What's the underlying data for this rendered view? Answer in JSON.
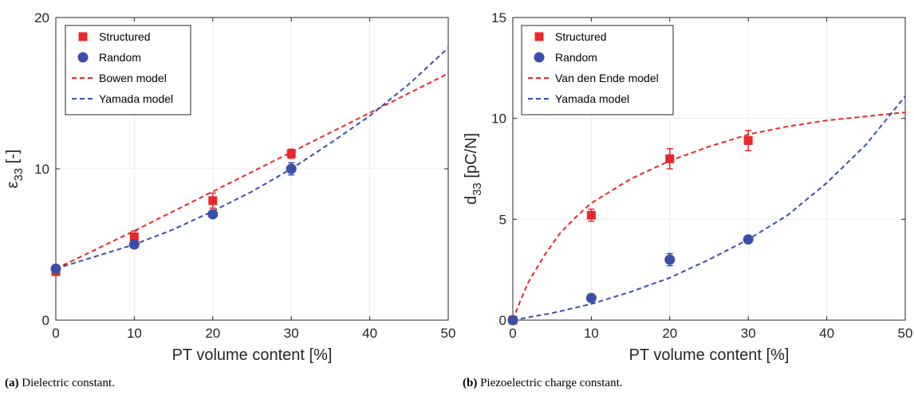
{
  "colors": {
    "structured": "#e8282a",
    "random": "#3a4fa8",
    "axis": "#262626",
    "grid": "#ebebeb"
  },
  "chart_data": [
    {
      "type": "scatter",
      "panel": "a",
      "caption_label": "(a)",
      "caption_text": "Dielectric constant.",
      "xlabel": "PT volume content [%]",
      "ylabel_main": "ε",
      "ylabel_sub": "33",
      "ylabel_tail": " [-]",
      "xlim": [
        0,
        50
      ],
      "ylim": [
        0,
        20
      ],
      "xticks": [
        0,
        10,
        20,
        30,
        40,
        50
      ],
      "yticks": [
        0,
        10,
        20
      ],
      "grid": true,
      "legend_position": "top-left",
      "series": [
        {
          "name": "Structured",
          "kind": "points",
          "marker": "square",
          "color": "#e8282a",
          "x": [
            0,
            10,
            20,
            30
          ],
          "y": [
            3.2,
            5.5,
            7.9,
            11.0
          ],
          "err": [
            0.2,
            0.4,
            0.5,
            0.3
          ]
        },
        {
          "name": "Random",
          "kind": "points",
          "marker": "circle",
          "color": "#3a4fa8",
          "x": [
            0,
            10,
            20,
            30
          ],
          "y": [
            3.4,
            5.0,
            7.0,
            10.0
          ],
          "err": [
            0.1,
            0.2,
            0.2,
            0.4
          ]
        },
        {
          "name": "Bowen model",
          "kind": "line",
          "color": "#e8282a",
          "x": [
            0,
            10,
            20,
            30,
            40,
            50
          ],
          "y": [
            3.4,
            5.9,
            8.5,
            11.1,
            13.7,
            16.3
          ]
        },
        {
          "name": "Yamada model",
          "kind": "line",
          "color": "#3a4fa8",
          "x": [
            0,
            5,
            10,
            15,
            20,
            25,
            30,
            35,
            40,
            45,
            50
          ],
          "y": [
            3.4,
            4.2,
            5.0,
            6.0,
            7.2,
            8.5,
            10.0,
            11.7,
            13.5,
            15.6,
            18.0
          ]
        }
      ]
    },
    {
      "type": "scatter",
      "panel": "b",
      "caption_label": "(b)",
      "caption_text": "Piezoelectric charge constant.",
      "xlabel": "PT volume content [%]",
      "ylabel_main": "d",
      "ylabel_sub": "33",
      "ylabel_tail": " [pC/N]",
      "xlim": [
        0,
        50
      ],
      "ylim": [
        0,
        15
      ],
      "xticks": [
        0,
        10,
        20,
        30,
        40,
        50
      ],
      "yticks": [
        0,
        5,
        10,
        15
      ],
      "grid": true,
      "legend_position": "top-left",
      "series": [
        {
          "name": "Structured",
          "kind": "points",
          "marker": "square",
          "color": "#e8282a",
          "x": [
            0,
            10,
            20,
            30
          ],
          "y": [
            0,
            5.2,
            8.0,
            8.9
          ],
          "err": [
            0.1,
            0.3,
            0.5,
            0.5
          ]
        },
        {
          "name": "Random",
          "kind": "points",
          "marker": "circle",
          "color": "#3a4fa8",
          "x": [
            0,
            10,
            20,
            30
          ],
          "y": [
            0,
            1.1,
            3.0,
            4.0
          ],
          "err": [
            0.1,
            0.1,
            0.3,
            0.1
          ]
        },
        {
          "name": "Van den Ende model",
          "kind": "line",
          "color": "#e8282a",
          "x": [
            0,
            1,
            2,
            4,
            6,
            8,
            10,
            15,
            20,
            25,
            30,
            35,
            40,
            45,
            50
          ],
          "y": [
            0,
            1.0,
            1.9,
            3.2,
            4.3,
            5.1,
            5.8,
            7.0,
            7.9,
            8.6,
            9.2,
            9.6,
            9.9,
            10.1,
            10.3
          ]
        },
        {
          "name": "Yamada model",
          "kind": "line",
          "color": "#3a4fa8",
          "x": [
            0,
            5,
            10,
            15,
            20,
            25,
            30,
            35,
            40,
            45,
            50
          ],
          "y": [
            0,
            0.35,
            0.8,
            1.4,
            2.1,
            3.0,
            4.0,
            5.2,
            6.8,
            8.7,
            11.1
          ]
        }
      ]
    }
  ]
}
